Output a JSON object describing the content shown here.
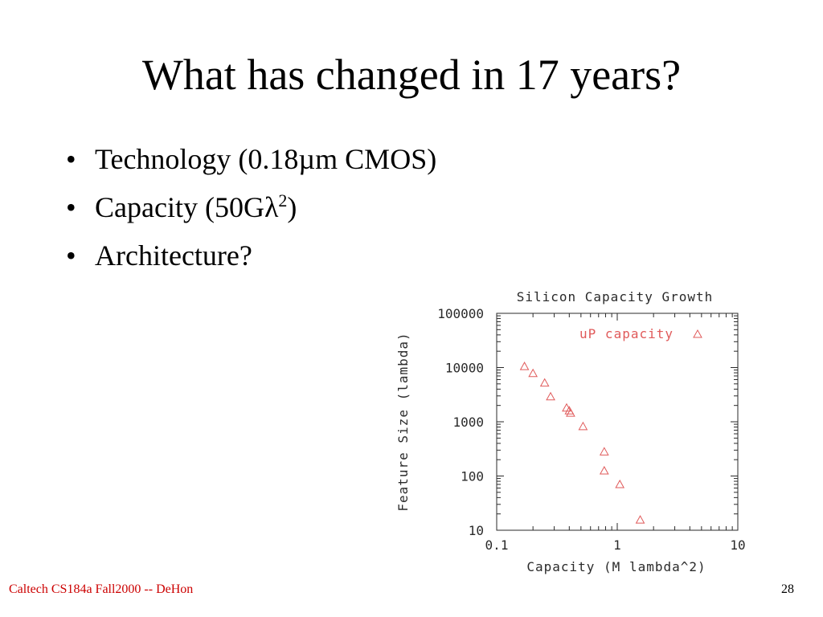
{
  "slide": {
    "title": "What has changed in 17 years?",
    "bullet_symbol": "•",
    "bullets": [
      {
        "text": "Technology (0.18µm CMOS)"
      },
      {
        "text": "Capacity (50Gλ",
        "sup": "2",
        "tail": ")"
      },
      {
        "text": "Architecture?"
      }
    ]
  },
  "footer": {
    "left": "Caltech CS184a Fall2000 -- DeHon",
    "page_number": "28"
  },
  "colors": {
    "footer_text": "#cc0000",
    "series_marker": "#e05a5a",
    "axis": "#2a2a2a"
  },
  "chart_data": {
    "type": "scatter",
    "title": "Silicon Capacity Growth",
    "xlabel": "Capacity (M lambda^2)",
    "ylabel": "Feature Size (lambda)",
    "xscale": "log",
    "yscale": "log",
    "xlim": [
      0.1,
      10
    ],
    "ylim": [
      10,
      100000
    ],
    "x_ticks": [
      {
        "value": 0.1,
        "label": "0.1"
      },
      {
        "value": 1,
        "label": "1"
      },
      {
        "value": 10,
        "label": "10"
      }
    ],
    "y_ticks": [
      {
        "value": 100000,
        "label": "100000"
      },
      {
        "value": 10000,
        "label": "10000"
      },
      {
        "value": 1000,
        "label": "1000"
      },
      {
        "value": 100,
        "label": "100"
      },
      {
        "value": 10,
        "label": "10"
      }
    ],
    "grid": false,
    "legend_position": "top-right",
    "marker": "triangle",
    "series": [
      {
        "name": "uP capacity",
        "points": [
          {
            "x": 0.17,
            "y": 10500
          },
          {
            "x": 0.2,
            "y": 7800
          },
          {
            "x": 0.25,
            "y": 5200
          },
          {
            "x": 0.28,
            "y": 2900
          },
          {
            "x": 0.38,
            "y": 1800
          },
          {
            "x": 0.4,
            "y": 1600
          },
          {
            "x": 0.41,
            "y": 1450
          },
          {
            "x": 0.52,
            "y": 820
          },
          {
            "x": 0.78,
            "y": 280
          },
          {
            "x": 0.78,
            "y": 125
          },
          {
            "x": 1.05,
            "y": 70
          },
          {
            "x": 1.55,
            "y": 15.5
          }
        ]
      }
    ]
  }
}
